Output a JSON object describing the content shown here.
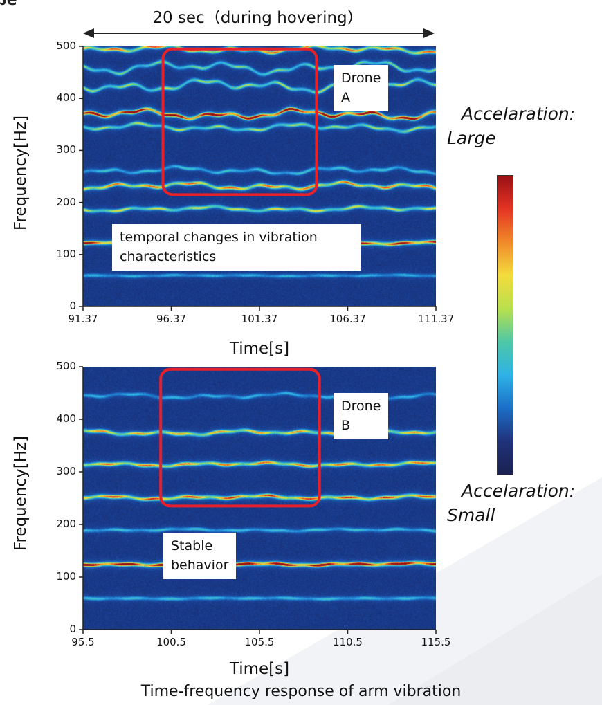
{
  "header": {
    "corner_text": "pe",
    "duration_label": "20 sec（during hovering）"
  },
  "chart_data": [
    {
      "type": "heatmap",
      "name": "Drone A",
      "title": "",
      "annotation_label": "Drone A",
      "note": "temporal changes in vibration characteristics",
      "xlabel": "Time[s]",
      "ylabel": "Frequency[Hz]",
      "xlim": [
        91.37,
        111.37
      ],
      "ylim": [
        0,
        500
      ],
      "x_ticks": [
        "91.37",
        "96.37",
        "101.37",
        "106.37",
        "111.37"
      ],
      "y_ticks": [
        "0",
        "100",
        "200",
        "300",
        "400",
        "500"
      ],
      "highlight_time_range": [
        95.9,
        104.6
      ],
      "highlight_freq_range": [
        215,
        495
      ],
      "bands": [
        {
          "freq": 60,
          "intensity": 0.3,
          "variation": 1
        },
        {
          "freq": 123,
          "intensity": 0.85,
          "variation": 2
        },
        {
          "freq": 188,
          "intensity": 0.55,
          "variation": 4
        },
        {
          "freq": 232,
          "intensity": 0.7,
          "variation": 6
        },
        {
          "freq": 262,
          "intensity": 0.35,
          "variation": 6
        },
        {
          "freq": 345,
          "intensity": 0.5,
          "variation": 6
        },
        {
          "freq": 370,
          "intensity": 0.95,
          "variation": 8
        },
        {
          "freq": 425,
          "intensity": 0.5,
          "variation": 10
        },
        {
          "freq": 460,
          "intensity": 0.45,
          "variation": 10
        },
        {
          "freq": 495,
          "intensity": 0.7,
          "variation": 6
        }
      ]
    },
    {
      "type": "heatmap",
      "name": "Drone B",
      "title": "",
      "annotation_label": "Drone B",
      "note": "Stable behavior",
      "xlabel": "Time[s]",
      "ylabel": "Frequency[Hz]",
      "xlim": [
        95.5,
        115.5
      ],
      "ylim": [
        0,
        500
      ],
      "x_ticks": [
        "95.5",
        "100.5",
        "105.5",
        "110.5",
        "115.5"
      ],
      "y_ticks": [
        "0",
        "100",
        "200",
        "300",
        "400",
        "500"
      ],
      "highlight_time_range": [
        99.9,
        108.9
      ],
      "highlight_freq_range": [
        235,
        495
      ],
      "bands": [
        {
          "freq": 60,
          "intensity": 0.35,
          "variation": 1
        },
        {
          "freq": 125,
          "intensity": 0.95,
          "variation": 2
        },
        {
          "freq": 190,
          "intensity": 0.35,
          "variation": 2
        },
        {
          "freq": 252,
          "intensity": 0.75,
          "variation": 3
        },
        {
          "freq": 315,
          "intensity": 0.7,
          "variation": 3
        },
        {
          "freq": 375,
          "intensity": 0.65,
          "variation": 4
        },
        {
          "freq": 445,
          "intensity": 0.3,
          "variation": 4
        }
      ]
    }
  ],
  "colorbar": {
    "top_label": "Accelaration:    \nLarge",
    "top_label_line1": "Accelaration:",
    "top_label_line2": "Large",
    "bottom_label_line1": "Accelaration:",
    "bottom_label_line2": "Small",
    "colors": [
      "#9a0f14",
      "#e63324",
      "#f08a2a",
      "#f4dc3c",
      "#b9e04c",
      "#4fc7a7",
      "#2eb3e6",
      "#1c6ec6",
      "#20327a",
      "#1a2050"
    ]
  },
  "highlight_color": "#e8202a",
  "caption": "Time-frequency response of arm vibration"
}
